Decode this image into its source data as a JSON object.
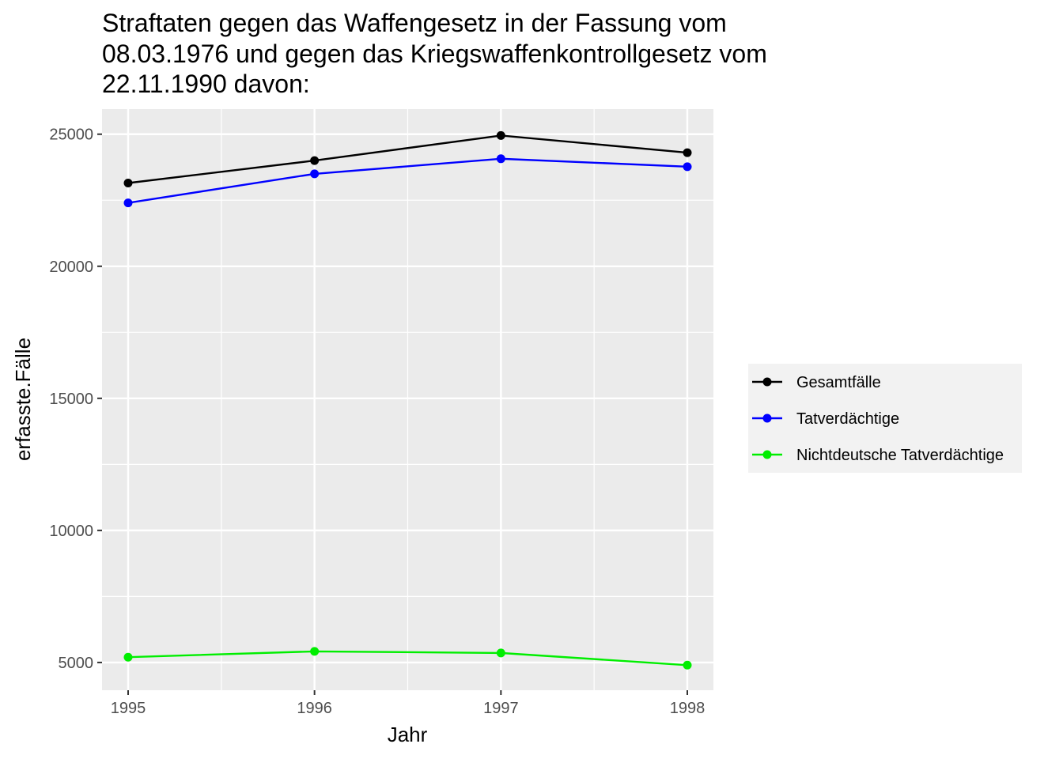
{
  "chart_data": {
    "type": "line",
    "title_lines": [
      "Straftaten gegen das Waffengesetz in der Fassung vom",
      "08.03.1976 und gegen das Kriegswaffenkontrollgesetz vom",
      "22.11.1990 davon:"
    ],
    "xlabel": "Jahr",
    "ylabel": "erfasste.Fälle",
    "x": [
      1995,
      1996,
      1997,
      1998
    ],
    "x_ticks": [
      "1995",
      "1996",
      "1997",
      "1998"
    ],
    "y_ticks": [
      5000,
      10000,
      15000,
      20000,
      25000
    ],
    "y_tick_labels": [
      "5000",
      "10000",
      "15000",
      "20000",
      "25000"
    ],
    "xlim": [
      1994.86,
      1998.14
    ],
    "ylim": [
      3950,
      25950
    ],
    "grid": true,
    "legend_position": "right",
    "series": [
      {
        "name": "Gesamtfälle",
        "color": "#000000",
        "values": [
          23150,
          24000,
          24950,
          24300
        ]
      },
      {
        "name": "Tatverdächtige",
        "color": "#0000ff",
        "values": [
          22400,
          23500,
          24070,
          23770
        ]
      },
      {
        "name": "Nichtdeutsche Tatverdächtige",
        "color": "#00ee00",
        "values": [
          5200,
          5420,
          5360,
          4900
        ]
      }
    ]
  }
}
